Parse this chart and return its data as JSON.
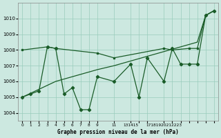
{
  "background_color": "#cce8e0",
  "grid_color": "#99ccbb",
  "line_color": "#1a5c28",
  "ylim": [
    1003.5,
    1011.0
  ],
  "yticks": [
    1004,
    1005,
    1006,
    1007,
    1008,
    1009,
    1010
  ],
  "xlim": [
    -0.5,
    23.5
  ],
  "xtick_positions": [
    0,
    1,
    2,
    3,
    4,
    5,
    6,
    7,
    8,
    9,
    11,
    13,
    14,
    15,
    17,
    18,
    19,
    20,
    21,
    22,
    23
  ],
  "xtick_labels": [
    "0",
    "1",
    "2",
    "3",
    "4",
    "5",
    "6",
    "7",
    "8",
    "9",
    "11",
    "131415",
    "",
    "",
    "17181920212223",
    "",
    "",
    "",
    "",
    "",
    ""
  ],
  "line_jagged_x": [
    0,
    1,
    2,
    3,
    4,
    5,
    6,
    7,
    8,
    9,
    11,
    13,
    14,
    15,
    17,
    18,
    19,
    20,
    21,
    22,
    23
  ],
  "line_jagged_y": [
    1005.0,
    1005.2,
    1005.4,
    1008.2,
    1008.1,
    1005.2,
    1005.6,
    1004.2,
    1004.2,
    1006.3,
    1006.0,
    1007.1,
    1005.0,
    1007.5,
    1006.0,
    1008.1,
    1007.1,
    1007.1,
    1007.1,
    1010.2,
    1010.5
  ],
  "line_flat_x": [
    0,
    3,
    4,
    9,
    11,
    17,
    18,
    20,
    21,
    22,
    23
  ],
  "line_flat_y": [
    1008.0,
    1008.2,
    1008.1,
    1007.8,
    1007.5,
    1008.1,
    1008.0,
    1008.1,
    1008.1,
    1010.2,
    1010.5
  ],
  "line_diag_x": [
    0,
    1,
    2,
    3,
    4,
    5,
    6,
    7,
    8,
    9,
    11,
    13,
    14,
    15,
    17,
    18,
    19,
    20,
    21,
    22,
    23
  ],
  "line_diag_y": [
    1005.0,
    1005.25,
    1005.5,
    1005.75,
    1006.0,
    1006.15,
    1006.3,
    1006.45,
    1006.6,
    1006.75,
    1007.0,
    1007.3,
    1007.45,
    1007.6,
    1007.9,
    1008.05,
    1008.2,
    1008.35,
    1008.5,
    1010.2,
    1010.5
  ],
  "xlabel": "Graphe pression niveau de la mer (hPa)"
}
